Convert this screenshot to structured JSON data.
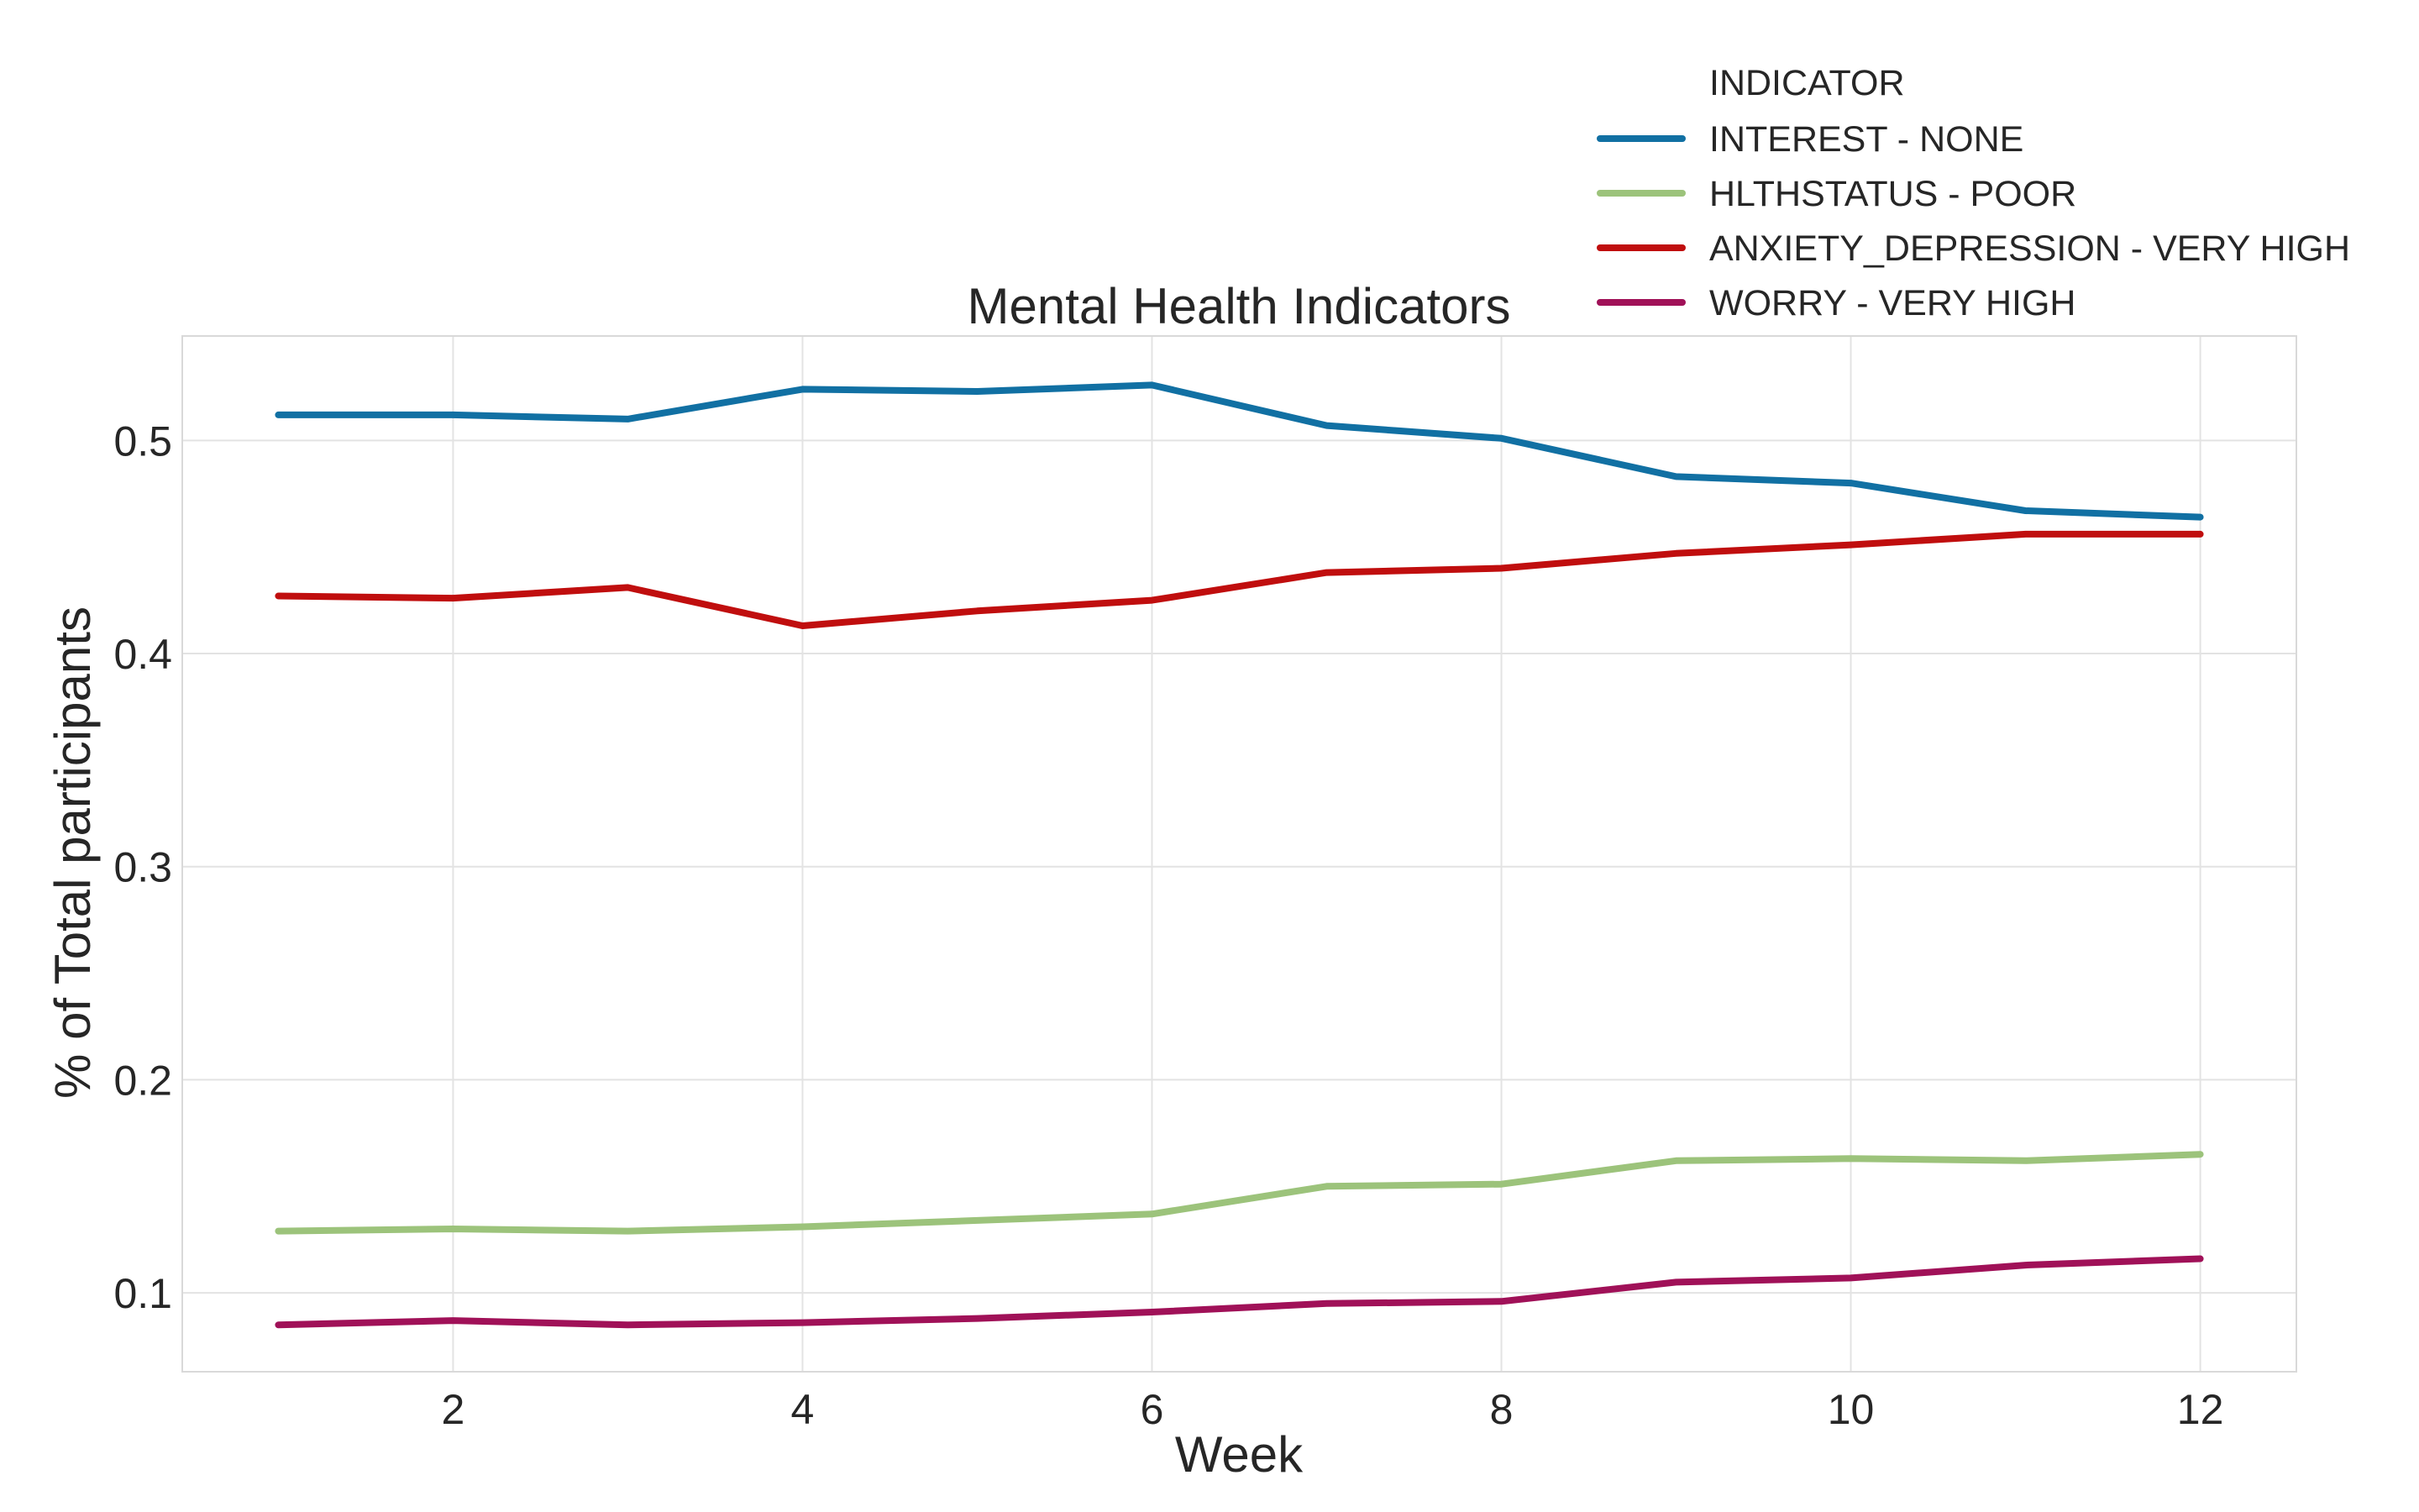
{
  "chart_data": {
    "type": "line",
    "title": "Mental Health Indicators",
    "xlabel": "Week",
    "ylabel": "% of Total participants",
    "xlim": [
      0.45,
      12.55
    ],
    "ylim": [
      0.063,
      0.549
    ],
    "xticks": [
      2,
      4,
      6,
      8,
      10,
      12
    ],
    "yticks": [
      0.1,
      0.2,
      0.3,
      0.4,
      0.5
    ],
    "xtick_labels": [
      "2",
      "4",
      "6",
      "8",
      "10",
      "12"
    ],
    "ytick_labels": [
      "0.1",
      "0.2",
      "0.3",
      "0.4",
      "0.5"
    ],
    "grid": true,
    "legend": {
      "title": "INDICATOR",
      "placement": "upper right, above plot"
    },
    "x": [
      1,
      2,
      3,
      4,
      5,
      6,
      7,
      8,
      9,
      10,
      11,
      12
    ],
    "series": [
      {
        "name": "INTEREST - NONE",
        "color": "#1170a3",
        "values": [
          0.512,
          0.512,
          0.51,
          0.524,
          0.523,
          0.526,
          0.507,
          0.501,
          0.483,
          0.48,
          0.467,
          0.464
        ]
      },
      {
        "name": "HLTHSTATUS - POOR",
        "color": "#9cc37b",
        "values": [
          0.129,
          0.13,
          0.129,
          0.131,
          0.134,
          0.137,
          0.15,
          0.151,
          0.162,
          0.163,
          0.162,
          0.165
        ]
      },
      {
        "name": "ANXIETY_DEPRESSION - VERY HIGH",
        "color": "#c00e0e",
        "values": [
          0.427,
          0.426,
          0.431,
          0.413,
          0.42,
          0.425,
          0.438,
          0.44,
          0.447,
          0.451,
          0.456,
          0.456
        ]
      },
      {
        "name": "WORRY - VERY HIGH",
        "color": "#a01158",
        "values": [
          0.085,
          0.087,
          0.085,
          0.086,
          0.088,
          0.091,
          0.095,
          0.096,
          0.105,
          0.107,
          0.113,
          0.116
        ]
      }
    ]
  }
}
